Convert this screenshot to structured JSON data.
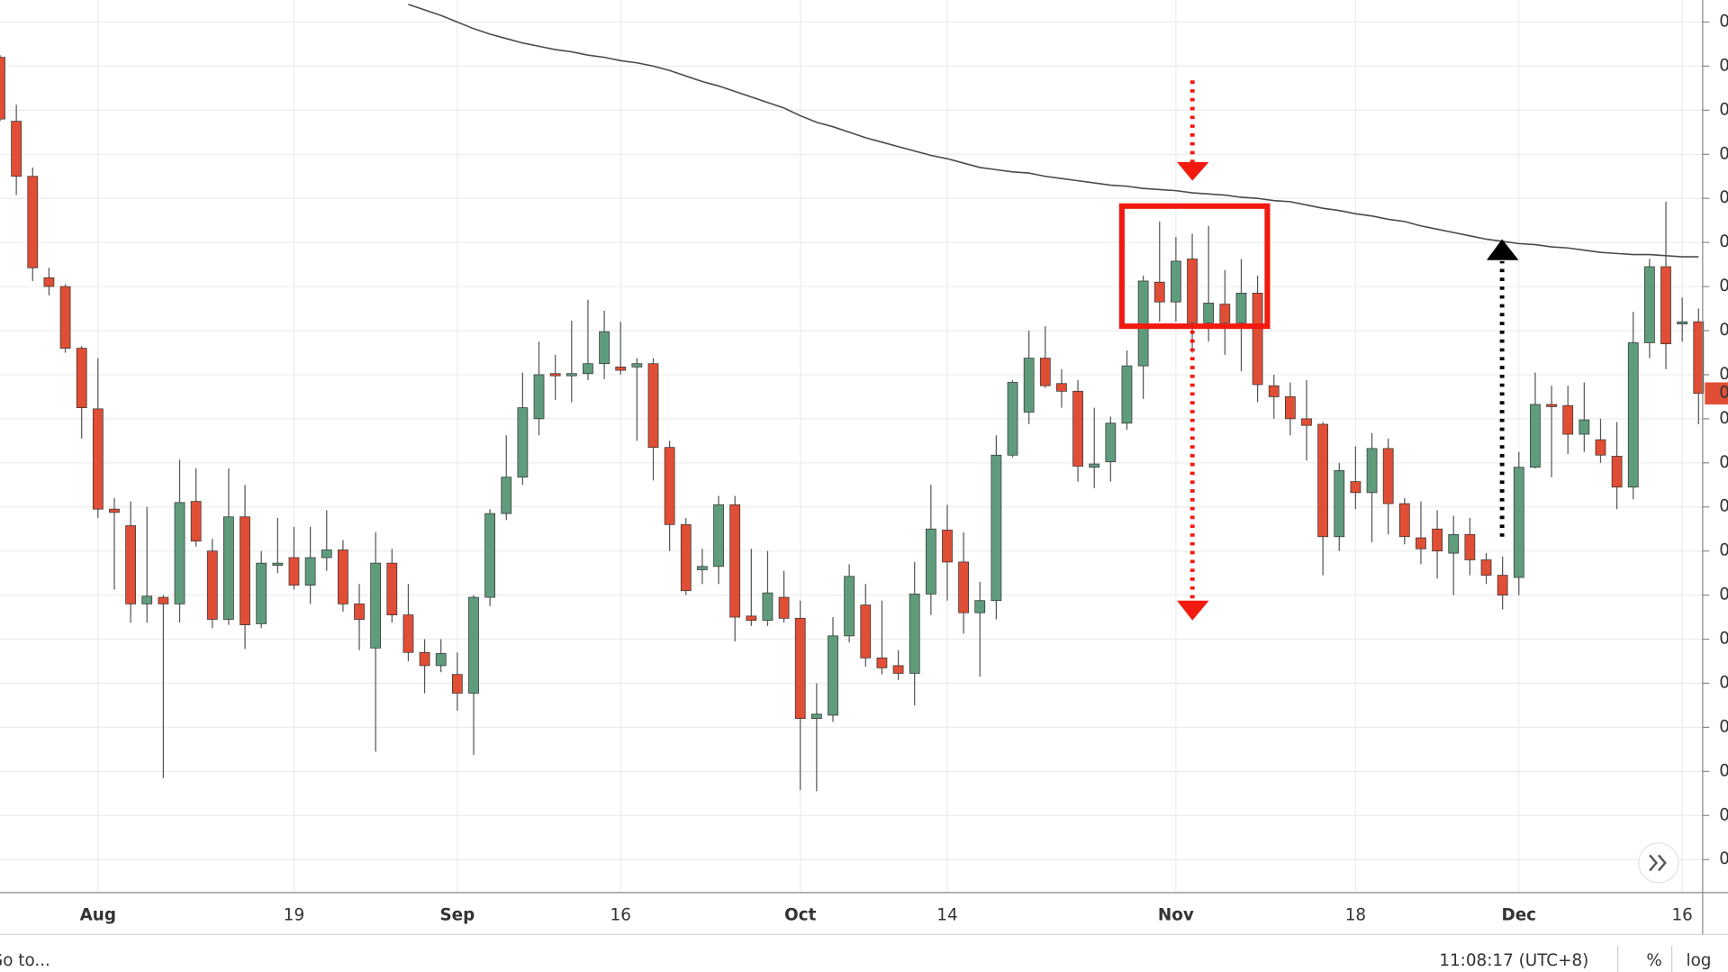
{
  "chart_data": {
    "type": "candlestick",
    "categories": [
      null,
      null,
      null,
      null,
      null,
      null,
      "Aug",
      null,
      null,
      null,
      null,
      null,
      null,
      null,
      null,
      null,
      null,
      null,
      "19",
      null,
      null,
      null,
      null,
      null,
      null,
      null,
      null,
      null,
      "Sep",
      null,
      null,
      null,
      null,
      null,
      null,
      null,
      null,
      null,
      "16",
      null,
      null,
      null,
      null,
      null,
      null,
      null,
      null,
      null,
      null,
      "Oct",
      null,
      null,
      null,
      null,
      null,
      null,
      null,
      null,
      "14",
      null,
      null,
      null,
      null,
      null,
      null,
      null,
      null,
      null,
      null,
      null,
      null,
      null,
      "Nov",
      null,
      null,
      null,
      null,
      null,
      null,
      null,
      null,
      null,
      null,
      "18",
      null,
      null,
      null,
      null,
      null,
      null,
      null,
      null,
      null,
      "Dec",
      null,
      null,
      null,
      null,
      null,
      null,
      null,
      null,
      null,
      "16",
      null
    ],
    "open": [
      948,
      890,
      840,
      748,
      740,
      684,
      629,
      538,
      523,
      452,
      458,
      452,
      545,
      500,
      438,
      531,
      434,
      487,
      494,
      469,
      494,
      501,
      452,
      412,
      489,
      442,
      408,
      396,
      388,
      371,
      458,
      534,
      567,
      620,
      661,
      659,
      661,
      670,
      667,
      667,
      670,
      594,
      524,
      483,
      486,
      542,
      441,
      437,
      458,
      439,
      348,
      351,
      423,
      451,
      403,
      396,
      389,
      461,
      519,
      490,
      444,
      455,
      587,
      626,
      675,
      652,
      645,
      576,
      581,
      616,
      668,
      744,
      726,
      765,
      707,
      724,
      707,
      734,
      650,
      640,
      620,
      615,
      513,
      563,
      553,
      593,
      543,
      512,
      520,
      498,
      515,
      492,
      478,
      476,
      576,
      633,
      632,
      606,
      601,
      586,
      558,
      689,
      758,
      706,
      708
    ],
    "high": [
      950,
      905,
      848,
      757,
      742,
      686,
      675,
      548,
      545,
      540,
      460,
      583,
      575,
      511,
      575,
      560,
      500,
      530,
      522,
      522,
      537,
      510,
      470,
      517,
      502,
      470,
      420,
      420,
      408,
      460,
      538,
      605,
      662,
      690,
      678,
      709,
      728,
      718,
      708,
      675,
      675,
      600,
      530,
      502,
      550,
      550,
      502,
      500,
      482,
      455,
      380,
      440,
      488,
      470,
      455,
      410,
      490,
      560,
      542,
      517,
      472,
      605,
      655,
      700,
      704,
      665,
      655,
      630,
      622,
      682,
      750,
      799,
      785,
      788,
      795,
      755,
      765,
      750,
      660,
      653,
      655,
      617,
      580,
      595,
      607,
      602,
      548,
      545,
      537,
      532,
      530,
      498,
      495,
      590,
      662,
      650,
      650,
      653,
      620,
      617,
      717,
      765,
      817,
      730,
      720
    ],
    "low": [
      890,
      823,
      745,
      732,
      680,
      602,
      530,
      465,
      435,
      435,
      294,
      435,
      504,
      430,
      433,
      411,
      430,
      480,
      465,
      452,
      482,
      445,
      410,
      318,
      435,
      400,
      371,
      390,
      355,
      315,
      450,
      528,
      560,
      605,
      637,
      635,
      655,
      656,
      660,
      600,
      564,
      500,
      460,
      470,
      470,
      418,
      432,
      432,
      435,
      283,
      282,
      345,
      417,
      395,
      388,
      383,
      360,
      442,
      455,
      425,
      386,
      438,
      585,
      615,
      648,
      630,
      563,
      557,
      563,
      610,
      638,
      708,
      708,
      680,
      690,
      678,
      663,
      635,
      620,
      605,
      582,
      478,
      500,
      538,
      508,
      515,
      506,
      488,
      475,
      460,
      478,
      470,
      447,
      460,
      575,
      567,
      588,
      590,
      580,
      538,
      547,
      675,
      665,
      690,
      615
    ],
    "close": [
      892,
      840,
      757,
      740,
      684,
      630,
      538,
      535,
      452,
      459,
      452,
      544,
      509,
      438,
      531,
      433,
      489,
      489,
      469,
      494,
      501,
      452,
      438,
      489,
      442,
      408,
      396,
      407,
      371,
      458,
      534,
      567,
      630,
      660,
      659,
      661,
      670,
      699,
      664,
      670,
      594,
      524,
      464,
      486,
      542,
      440,
      437,
      462,
      439,
      348,
      352,
      423,
      477,
      403,
      394,
      389,
      461,
      520,
      490,
      444,
      455,
      587,
      653,
      675,
      650,
      645,
      577,
      579,
      616,
      668,
      745,
      726,
      763,
      707,
      725,
      707,
      734,
      651,
      640,
      620,
      614,
      513,
      573,
      553,
      593,
      543,
      513,
      502,
      500,
      515,
      492,
      478,
      460,
      576,
      633,
      632,
      606,
      619,
      587,
      558,
      689,
      758,
      688,
      708,
      643
    ],
    "moving_average": [
      null,
      null,
      null,
      null,
      null,
      null,
      null,
      null,
      null,
      null,
      null,
      null,
      null,
      null,
      null,
      null,
      null,
      null,
      null,
      null,
      null,
      null,
      null,
      null,
      null,
      996,
      991,
      986,
      980,
      974,
      969,
      965,
      961,
      958,
      955,
      953,
      950,
      948,
      945,
      943,
      940,
      936,
      931,
      926,
      922,
      917,
      912,
      907,
      902,
      895,
      889,
      885,
      880,
      875,
      871,
      867,
      863,
      859,
      856,
      852,
      848,
      846,
      844,
      843,
      840,
      838,
      836,
      834,
      832,
      831,
      829,
      828,
      827,
      825,
      824,
      823,
      821,
      820,
      818,
      817,
      814,
      811,
      809,
      806,
      804,
      801,
      799,
      795,
      792,
      789,
      786,
      783,
      781,
      779,
      778,
      776,
      775,
      773,
      771,
      770,
      769,
      769,
      768,
      767,
      767
    ],
    "up_color": "#5f9c7c",
    "down_color": "#e04e35",
    "ma_color": "#4a4a4a",
    "ylim": [
      190,
      1000
    ],
    "yticks": [
      {
        "value": 980,
        "label": "0"
      },
      {
        "value": 940,
        "label": "0"
      },
      {
        "value": 900,
        "label": "0"
      },
      {
        "value": 860,
        "label": "0"
      },
      {
        "value": 820,
        "label": "0"
      },
      {
        "value": 780,
        "label": "0"
      },
      {
        "value": 740,
        "label": "0"
      },
      {
        "value": 700,
        "label": "0"
      },
      {
        "value": 660,
        "label": "0"
      },
      {
        "value": 620,
        "label": "0"
      },
      {
        "value": 580,
        "label": "0"
      },
      {
        "value": 540,
        "label": "0"
      },
      {
        "value": 500,
        "label": "0"
      },
      {
        "value": 460,
        "label": "0"
      },
      {
        "value": 420,
        "label": "0"
      },
      {
        "value": 380,
        "label": "0"
      },
      {
        "value": 340,
        "label": "0"
      },
      {
        "value": 300,
        "label": "0"
      },
      {
        "value": 260,
        "label": "0"
      },
      {
        "value": 220,
        "label": "0"
      }
    ],
    "last_price_label": "0",
    "grid": true
  },
  "toolbar": {
    "goto": "Go to...",
    "clock": "11:08:17 (UTC+8)",
    "percent": "%",
    "log": "log"
  }
}
